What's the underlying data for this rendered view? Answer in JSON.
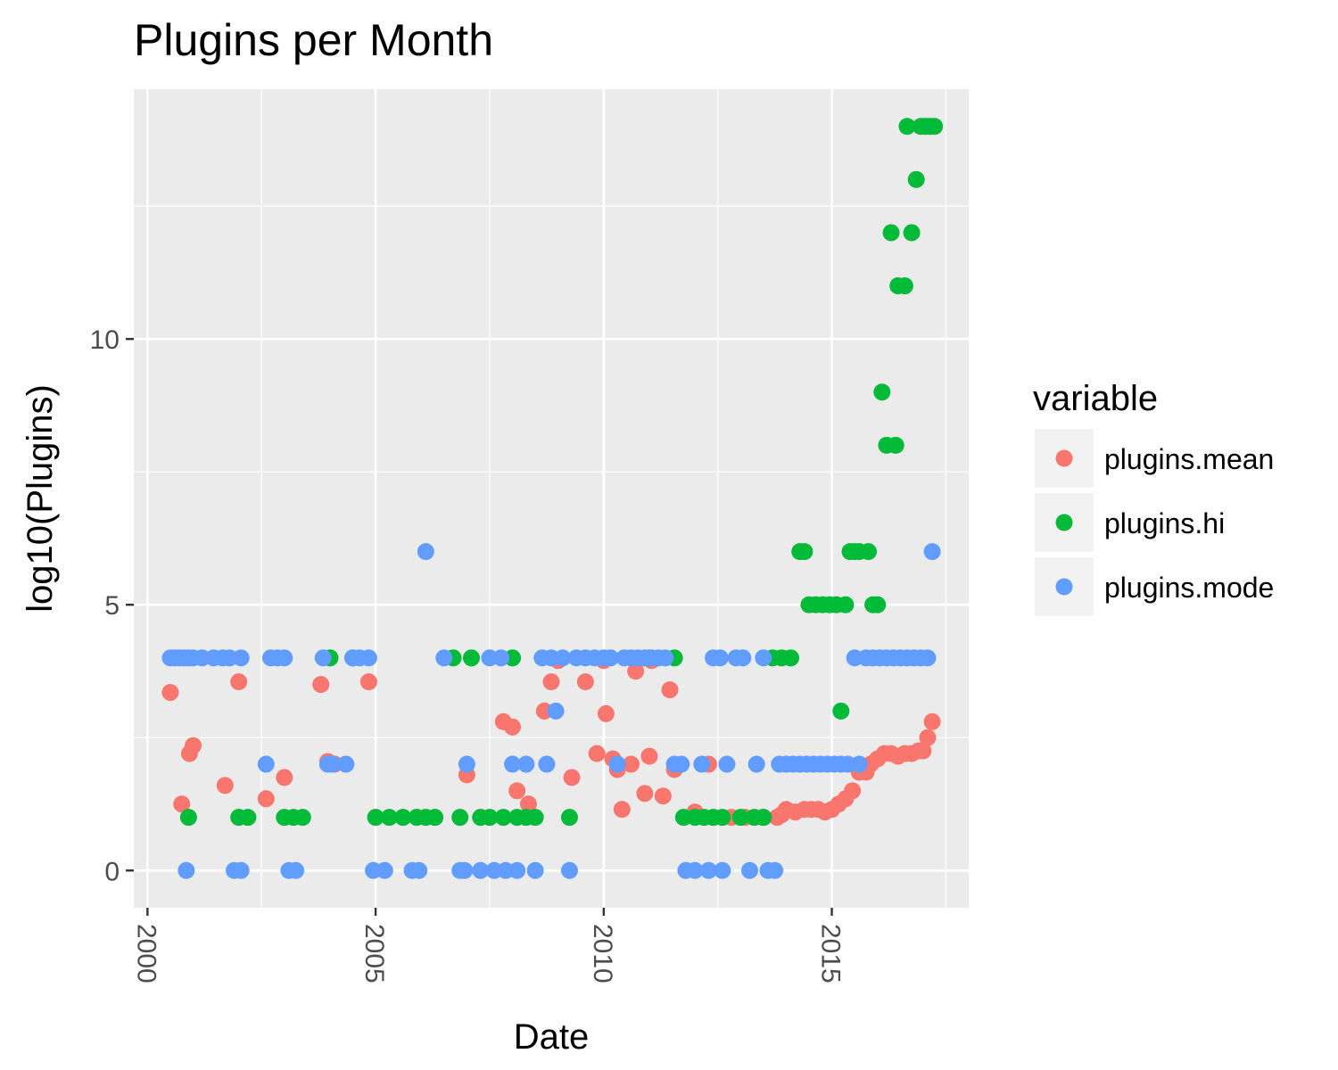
{
  "chart_data": {
    "type": "scatter",
    "title": "Plugins per Month",
    "xlabel": "Date",
    "ylabel": "log10(Plugins)",
    "x_tick_labels": [
      "2000",
      "2005",
      "2010",
      "2015"
    ],
    "y_tick_labels": [
      "0",
      "5",
      "10"
    ],
    "xlim": [
      1999.7,
      2018.0
    ],
    "ylim": [
      -0.7,
      14.7
    ],
    "grid": true,
    "legend": {
      "title": "variable",
      "position": "right"
    },
    "series": [
      {
        "name": "plugins.mean",
        "color": "#F8766D",
        "points": [
          [
            2000.5,
            3.35
          ],
          [
            2000.75,
            1.25
          ],
          [
            2000.92,
            2.2
          ],
          [
            2001.0,
            2.35
          ],
          [
            2001.7,
            1.6
          ],
          [
            2002.0,
            3.55
          ],
          [
            2002.6,
            1.35
          ],
          [
            2003.0,
            1.75
          ],
          [
            2003.8,
            3.5
          ],
          [
            2003.95,
            2.05
          ],
          [
            2004.1,
            2.0
          ],
          [
            2004.85,
            3.55
          ],
          [
            2007.0,
            1.8
          ],
          [
            2007.8,
            2.8
          ],
          [
            2008.0,
            2.7
          ],
          [
            2008.1,
            1.5
          ],
          [
            2008.35,
            1.25
          ],
          [
            2008.7,
            3.0
          ],
          [
            2008.85,
            3.55
          ],
          [
            2009.0,
            3.95
          ],
          [
            2009.3,
            1.75
          ],
          [
            2009.6,
            3.55
          ],
          [
            2009.85,
            2.2
          ],
          [
            2010.0,
            3.95
          ],
          [
            2010.05,
            2.95
          ],
          [
            2010.2,
            2.1
          ],
          [
            2010.3,
            1.9
          ],
          [
            2010.4,
            1.15
          ],
          [
            2010.6,
            2.0
          ],
          [
            2010.7,
            3.75
          ],
          [
            2010.9,
            1.45
          ],
          [
            2011.0,
            2.15
          ],
          [
            2011.05,
            3.95
          ],
          [
            2011.3,
            1.4
          ],
          [
            2011.45,
            3.4
          ],
          [
            2011.55,
            1.9
          ],
          [
            2012.0,
            1.1
          ],
          [
            2012.3,
            2.0
          ],
          [
            2012.8,
            1.0
          ],
          [
            2013.1,
            1.0
          ],
          [
            2013.5,
            1.0
          ],
          [
            2013.8,
            1.0
          ],
          [
            2013.9,
            1.05
          ],
          [
            2014.0,
            1.15
          ],
          [
            2014.2,
            1.1
          ],
          [
            2014.4,
            1.15
          ],
          [
            2014.55,
            1.15
          ],
          [
            2014.7,
            1.15
          ],
          [
            2014.85,
            1.1
          ],
          [
            2015.0,
            1.15
          ],
          [
            2015.15,
            1.25
          ],
          [
            2015.3,
            1.35
          ],
          [
            2015.45,
            1.5
          ],
          [
            2015.6,
            1.85
          ],
          [
            2015.75,
            1.85
          ],
          [
            2015.85,
            2.0
          ],
          [
            2016.0,
            2.1
          ],
          [
            2016.15,
            2.2
          ],
          [
            2016.3,
            2.2
          ],
          [
            2016.45,
            2.15
          ],
          [
            2016.6,
            2.2
          ],
          [
            2016.75,
            2.2
          ],
          [
            2016.9,
            2.25
          ],
          [
            2017.0,
            2.25
          ],
          [
            2017.1,
            2.5
          ],
          [
            2017.2,
            2.8
          ]
        ]
      },
      {
        "name": "plugins.hi",
        "color": "#00BA38",
        "points": [
          [
            2000.9,
            1.0
          ],
          [
            2002.0,
            1.0
          ],
          [
            2002.2,
            1.0
          ],
          [
            2003.0,
            1.0
          ],
          [
            2003.2,
            1.0
          ],
          [
            2003.4,
            1.0
          ],
          [
            2004.0,
            4.0
          ],
          [
            2004.5,
            4.0
          ],
          [
            2005.0,
            1.0
          ],
          [
            2005.3,
            1.0
          ],
          [
            2005.6,
            1.0
          ],
          [
            2005.9,
            1.0
          ],
          [
            2006.1,
            1.0
          ],
          [
            2006.3,
            1.0
          ],
          [
            2006.7,
            4.0
          ],
          [
            2006.85,
            1.0
          ],
          [
            2007.1,
            4.0
          ],
          [
            2007.3,
            1.0
          ],
          [
            2007.5,
            1.0
          ],
          [
            2007.8,
            1.0
          ],
          [
            2008.1,
            1.0
          ],
          [
            2008.3,
            1.0
          ],
          [
            2008.5,
            1.0
          ],
          [
            2008.0,
            4.0
          ],
          [
            2009.25,
            1.0
          ],
          [
            2011.0,
            4.0
          ],
          [
            2011.55,
            4.0
          ],
          [
            2011.75,
            1.0
          ],
          [
            2012.0,
            1.0
          ],
          [
            2012.2,
            1.0
          ],
          [
            2012.4,
            1.0
          ],
          [
            2012.6,
            1.0
          ],
          [
            2013.0,
            1.0
          ],
          [
            2013.3,
            1.0
          ],
          [
            2013.5,
            1.0
          ],
          [
            2013.7,
            4.0
          ],
          [
            2013.9,
            4.0
          ],
          [
            2014.1,
            4.0
          ],
          [
            2014.3,
            6.0
          ],
          [
            2014.4,
            6.0
          ],
          [
            2014.5,
            5.0
          ],
          [
            2014.65,
            5.0
          ],
          [
            2014.8,
            5.0
          ],
          [
            2014.95,
            5.0
          ],
          [
            2015.1,
            5.0
          ],
          [
            2015.2,
            3.0
          ],
          [
            2015.3,
            5.0
          ],
          [
            2015.4,
            6.0
          ],
          [
            2015.5,
            6.0
          ],
          [
            2015.6,
            6.0
          ],
          [
            2015.8,
            6.0
          ],
          [
            2015.9,
            5.0
          ],
          [
            2016.0,
            5.0
          ],
          [
            2016.1,
            9.0
          ],
          [
            2016.2,
            8.0
          ],
          [
            2016.3,
            12.0
          ],
          [
            2016.4,
            8.0
          ],
          [
            2016.45,
            11.0
          ],
          [
            2016.6,
            11.0
          ],
          [
            2016.65,
            14.0
          ],
          [
            2016.75,
            12.0
          ],
          [
            2016.85,
            13.0
          ],
          [
            2016.95,
            14.0
          ],
          [
            2017.05,
            14.0
          ],
          [
            2017.15,
            14.0
          ],
          [
            2017.25,
            14.0
          ]
        ]
      },
      {
        "name": "plugins.mode",
        "color": "#619CFF",
        "points": [
          [
            2000.5,
            4.0
          ],
          [
            2000.6,
            4.0
          ],
          [
            2000.7,
            4.0
          ],
          [
            2000.8,
            4.0
          ],
          [
            2000.9,
            4.0
          ],
          [
            2001.0,
            4.0
          ],
          [
            2001.2,
            4.0
          ],
          [
            2001.45,
            4.0
          ],
          [
            2001.65,
            4.0
          ],
          [
            2001.8,
            4.0
          ],
          [
            2002.05,
            4.0
          ],
          [
            2000.85,
            0.0
          ],
          [
            2001.9,
            0.0
          ],
          [
            2002.05,
            0.0
          ],
          [
            2002.6,
            2.0
          ],
          [
            2002.7,
            4.0
          ],
          [
            2002.85,
            4.0
          ],
          [
            2003.0,
            4.0
          ],
          [
            2003.1,
            0.0
          ],
          [
            2003.25,
            0.0
          ],
          [
            2003.85,
            4.0
          ],
          [
            2003.95,
            2.0
          ],
          [
            2004.05,
            2.0
          ],
          [
            2004.35,
            2.0
          ],
          [
            2004.5,
            4.0
          ],
          [
            2004.65,
            4.0
          ],
          [
            2004.85,
            4.0
          ],
          [
            2004.95,
            0.0
          ],
          [
            2005.2,
            0.0
          ],
          [
            2005.8,
            0.0
          ],
          [
            2005.95,
            0.0
          ],
          [
            2006.1,
            6.0
          ],
          [
            2006.5,
            4.0
          ],
          [
            2006.85,
            0.0
          ],
          [
            2006.95,
            0.0
          ],
          [
            2007.0,
            2.0
          ],
          [
            2007.3,
            0.0
          ],
          [
            2007.5,
            4.0
          ],
          [
            2007.6,
            0.0
          ],
          [
            2007.75,
            4.0
          ],
          [
            2007.85,
            0.0
          ],
          [
            2008.0,
            2.0
          ],
          [
            2008.1,
            0.0
          ],
          [
            2008.3,
            2.0
          ],
          [
            2008.5,
            0.0
          ],
          [
            2008.65,
            4.0
          ],
          [
            2008.75,
            2.0
          ],
          [
            2008.85,
            4.0
          ],
          [
            2008.95,
            3.0
          ],
          [
            2009.1,
            4.0
          ],
          [
            2009.25,
            0.0
          ],
          [
            2009.4,
            4.0
          ],
          [
            2009.6,
            4.0
          ],
          [
            2009.8,
            4.0
          ],
          [
            2010.0,
            4.0
          ],
          [
            2010.15,
            4.0
          ],
          [
            2010.3,
            2.0
          ],
          [
            2010.45,
            4.0
          ],
          [
            2010.6,
            4.0
          ],
          [
            2010.75,
            4.0
          ],
          [
            2010.9,
            4.0
          ],
          [
            2011.05,
            4.0
          ],
          [
            2011.2,
            4.0
          ],
          [
            2011.35,
            4.0
          ],
          [
            2011.55,
            2.0
          ],
          [
            2011.7,
            2.0
          ],
          [
            2011.8,
            0.0
          ],
          [
            2012.0,
            0.0
          ],
          [
            2012.15,
            2.0
          ],
          [
            2012.3,
            0.0
          ],
          [
            2012.4,
            4.0
          ],
          [
            2012.55,
            4.0
          ],
          [
            2012.7,
            2.0
          ],
          [
            2012.6,
            0.0
          ],
          [
            2012.9,
            4.0
          ],
          [
            2013.05,
            4.0
          ],
          [
            2013.2,
            0.0
          ],
          [
            2013.35,
            2.0
          ],
          [
            2013.5,
            4.0
          ],
          [
            2013.6,
            0.0
          ],
          [
            2013.75,
            0.0
          ],
          [
            2013.85,
            2.0
          ],
          [
            2014.0,
            2.0
          ],
          [
            2014.15,
            2.0
          ],
          [
            2014.3,
            2.0
          ],
          [
            2014.45,
            2.0
          ],
          [
            2014.6,
            2.0
          ],
          [
            2014.75,
            2.0
          ],
          [
            2014.9,
            2.0
          ],
          [
            2015.05,
            2.0
          ],
          [
            2015.2,
            2.0
          ],
          [
            2015.35,
            2.0
          ],
          [
            2015.5,
            4.0
          ],
          [
            2015.6,
            2.0
          ],
          [
            2015.75,
            4.0
          ],
          [
            2015.9,
            4.0
          ],
          [
            2016.05,
            4.0
          ],
          [
            2016.2,
            4.0
          ],
          [
            2016.35,
            4.0
          ],
          [
            2016.5,
            4.0
          ],
          [
            2016.65,
            4.0
          ],
          [
            2016.8,
            4.0
          ],
          [
            2016.95,
            4.0
          ],
          [
            2017.1,
            4.0
          ],
          [
            2017.2,
            6.0
          ]
        ]
      }
    ]
  }
}
